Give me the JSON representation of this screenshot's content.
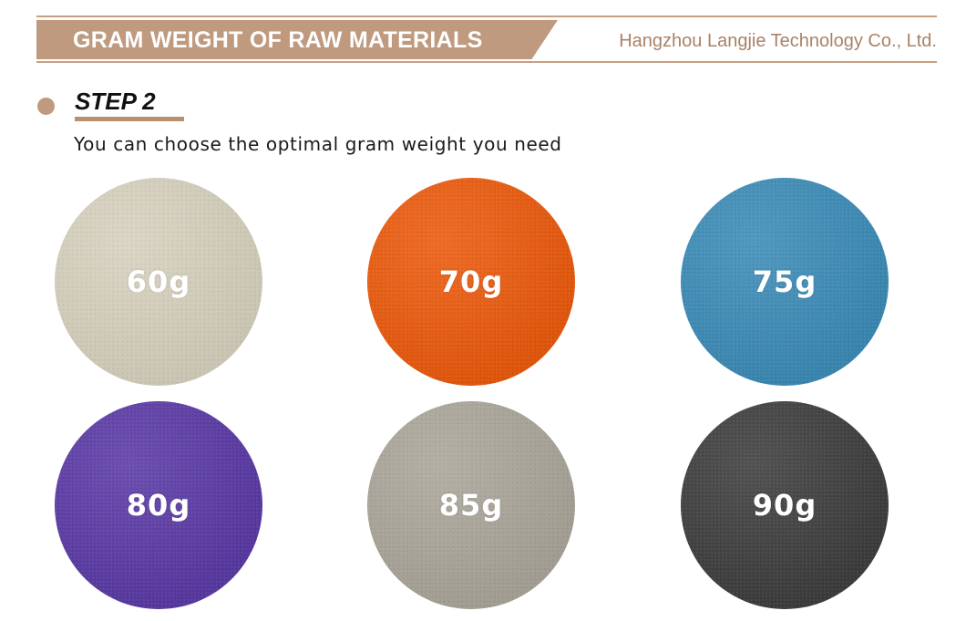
{
  "header": {
    "title": "GRAM WEIGHT OF RAW MATERIALS",
    "company": "Hangzhou Langjie Technology Co., Ltd."
  },
  "step": {
    "title": "STEP 2",
    "description": "You can choose the optimal gram weight you need"
  },
  "swatches": [
    {
      "label": "60g",
      "color": "#d7d1be"
    },
    {
      "label": "70g",
      "color": "#ec5a0c"
    },
    {
      "label": "75g",
      "color": "#3c8cb8"
    },
    {
      "label": "80g",
      "color": "#5b3aa6"
    },
    {
      "label": "85g",
      "color": "#aba69a"
    },
    {
      "label": "90g",
      "color": "#3e3e3e"
    }
  ],
  "colors": {
    "accent": "#c09a7e",
    "accent_dark": "#b8906f",
    "company_text": "#a98268"
  }
}
